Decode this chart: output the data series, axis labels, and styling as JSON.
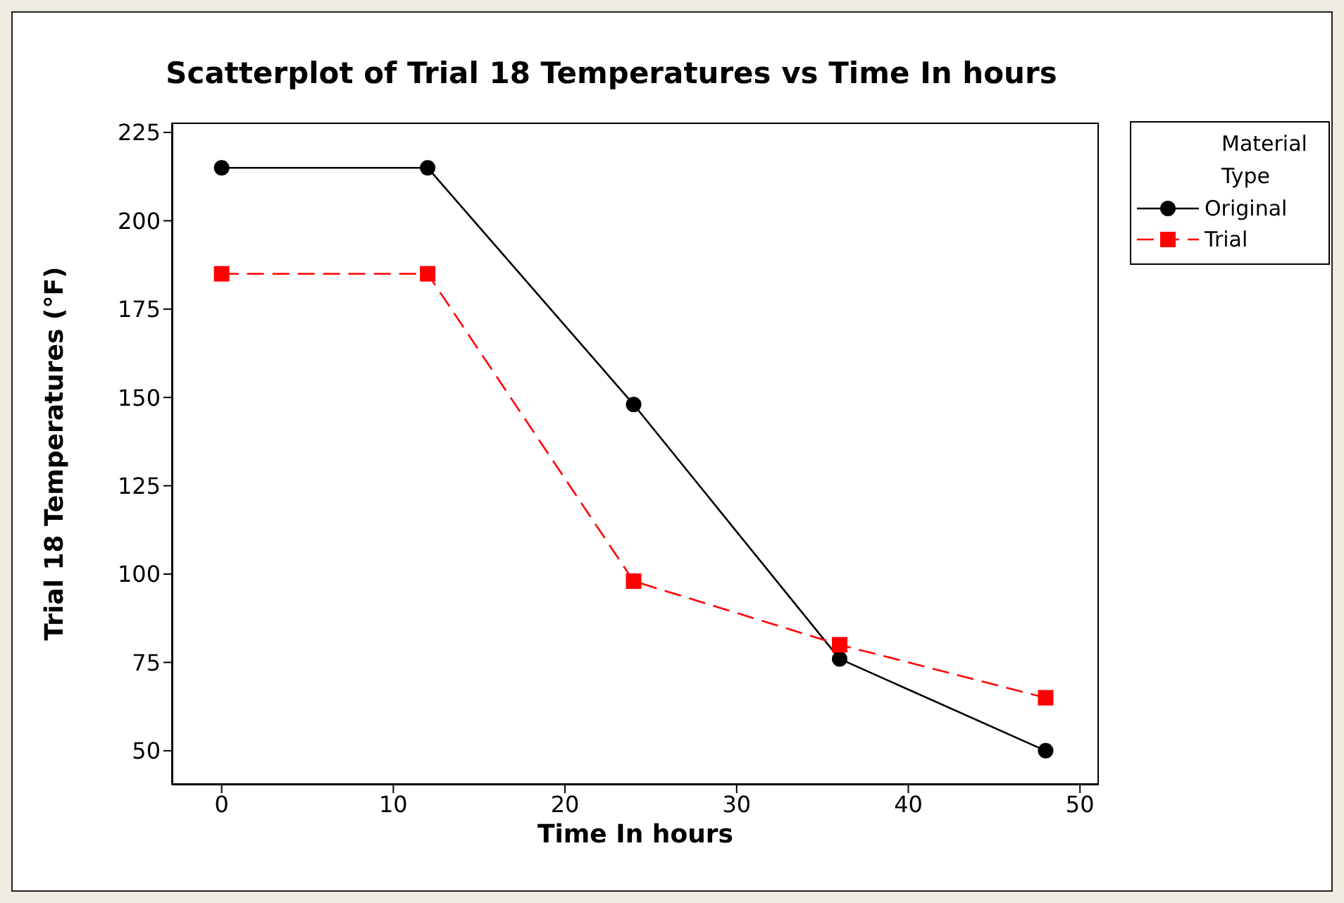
{
  "chart_data": {
    "type": "line",
    "title": "Scatterplot of Trial 18 Temperatures vs Time In hours",
    "xlabel": "Time In hours",
    "ylabel": "Trial 18 Temperatures (°F)",
    "legend_title": "Material Type",
    "legend": "top right",
    "x": [
      0,
      12,
      24,
      36,
      48
    ],
    "series": [
      {
        "name": "Original",
        "color": "#000000",
        "values": [
          215,
          215,
          148,
          76,
          50
        ],
        "marker": "circle",
        "line_style": "solid"
      },
      {
        "name": "Trial",
        "color": "#ff0000",
        "values": [
          185,
          185,
          98,
          80,
          65
        ],
        "marker": "square",
        "line_style": "dashed"
      }
    ],
    "xlim": [
      -2.9,
      51.1
    ],
    "xticks": [
      0,
      10,
      20,
      30,
      40,
      50
    ],
    "ylim": [
      40.4,
      227.8
    ],
    "yticks": [
      50,
      75,
      100,
      125,
      150,
      175,
      200,
      225
    ],
    "grid": false
  }
}
